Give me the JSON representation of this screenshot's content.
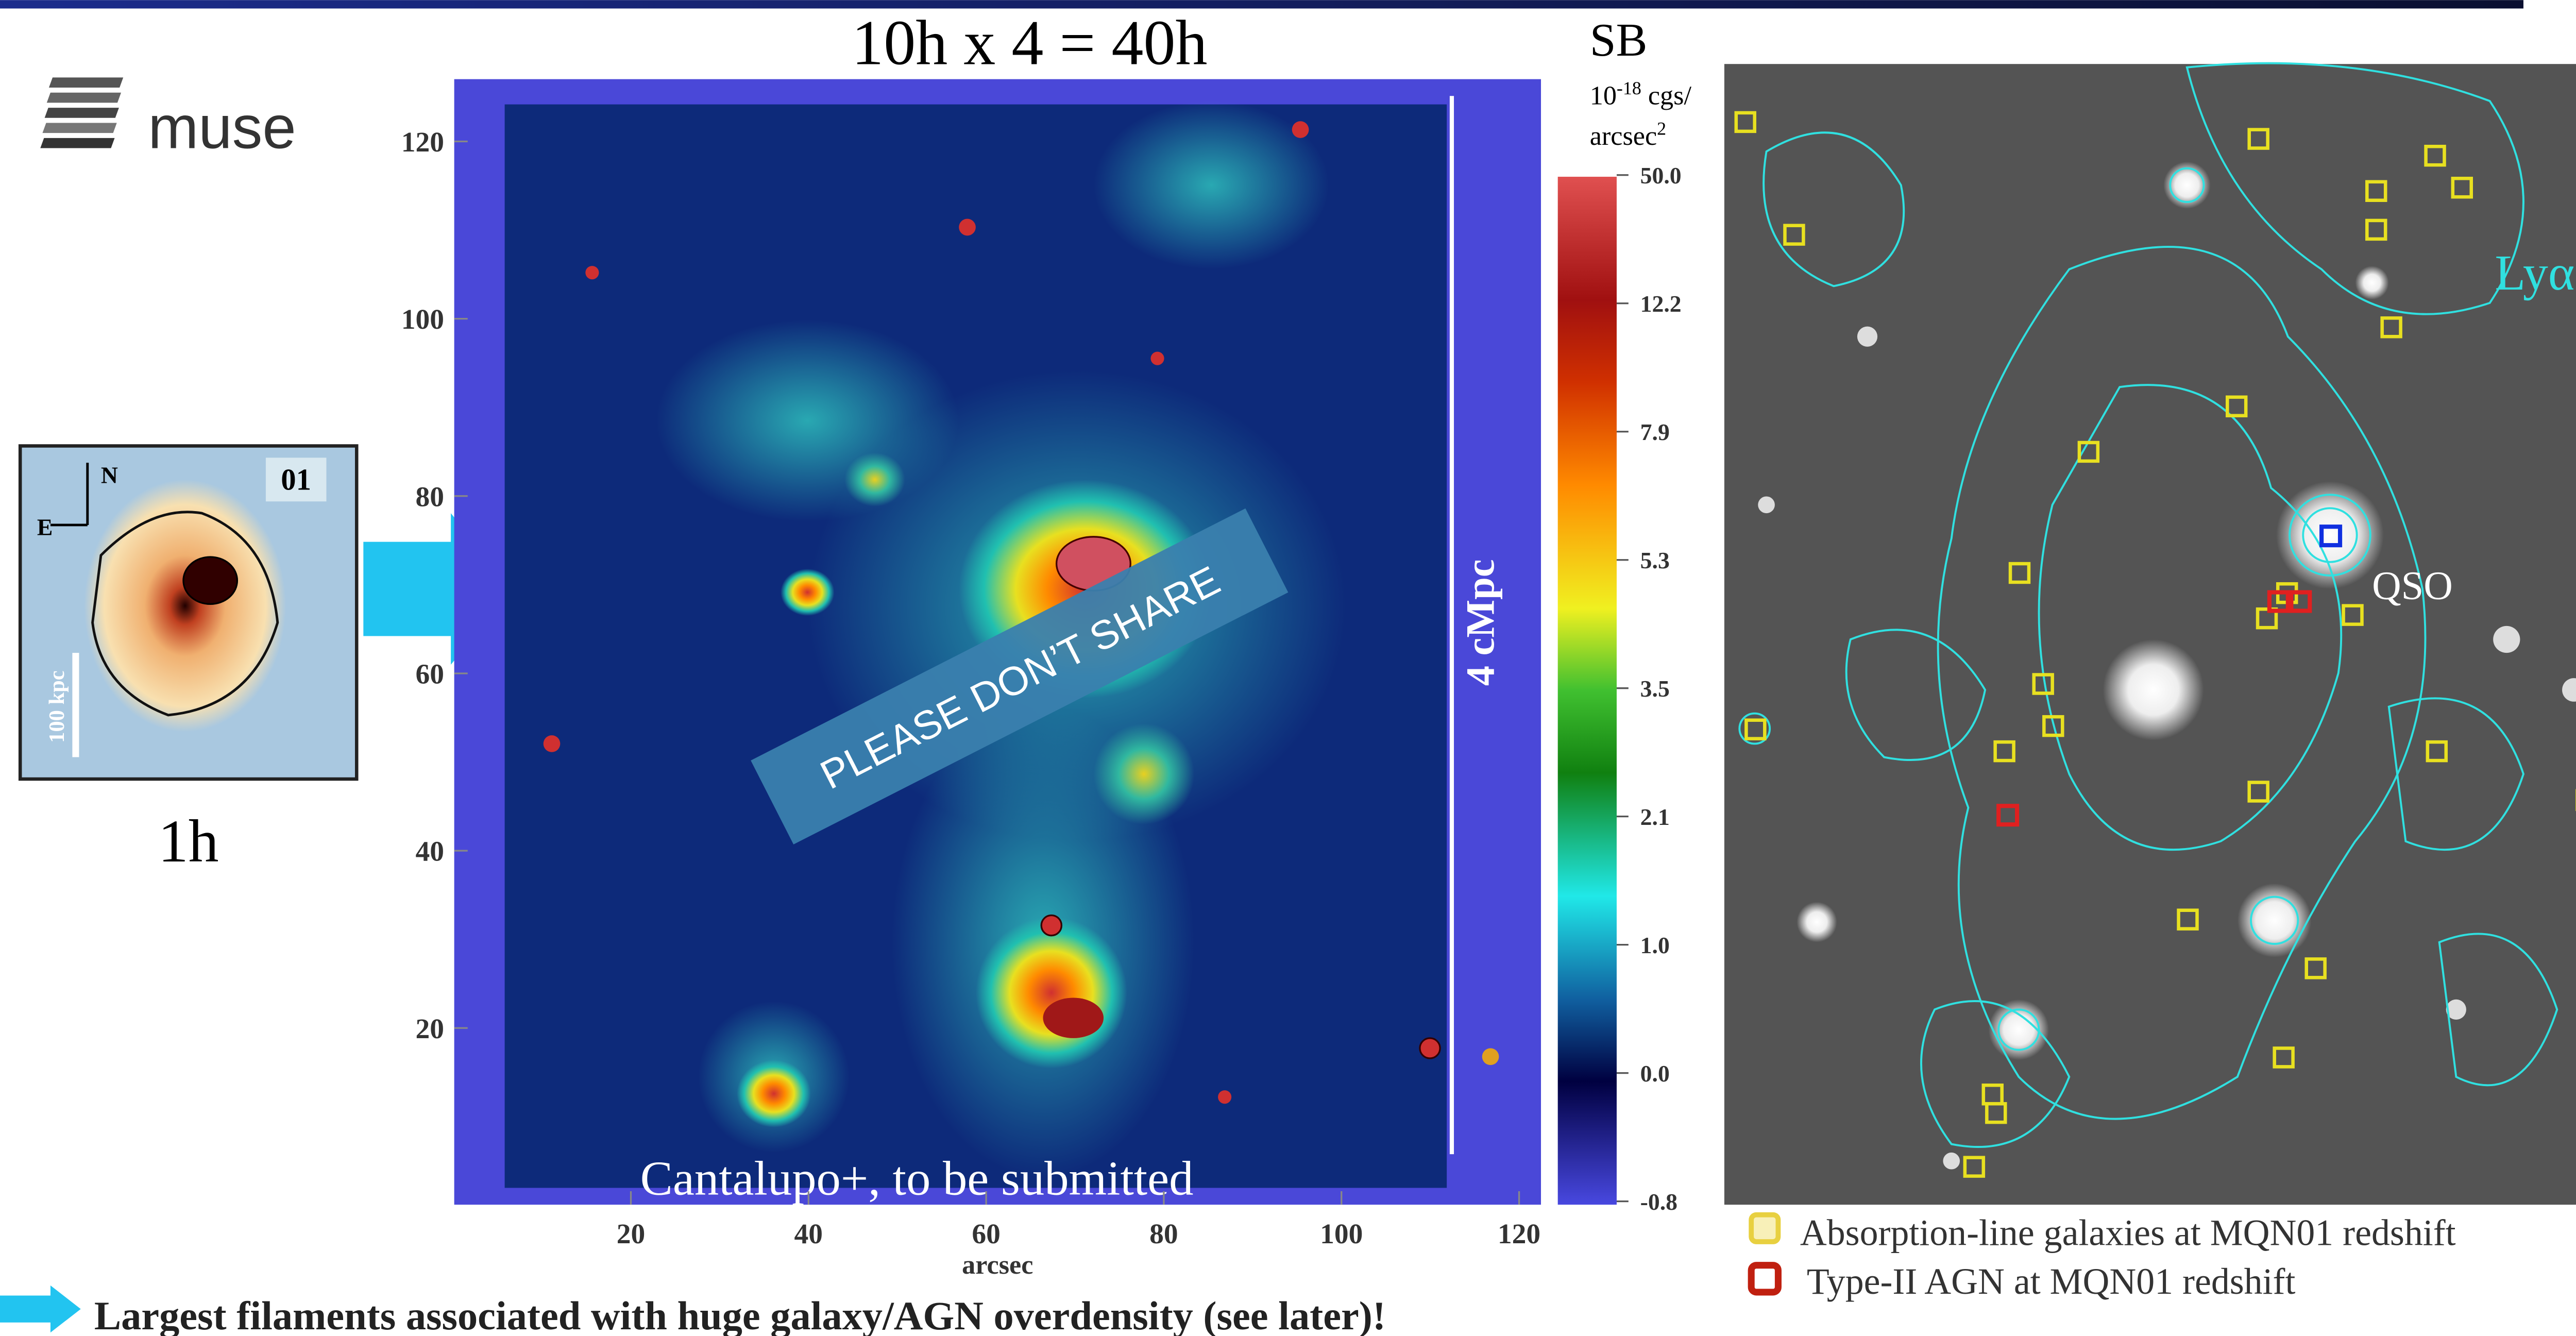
{
  "header": {
    "title": "10h x 4 = 40h"
  },
  "logo": {
    "text": "muse"
  },
  "inset": {
    "label": "01",
    "north": "N",
    "east": "E",
    "scale": "100 kpc",
    "caption": "1h"
  },
  "map": {
    "yticks": [
      "120",
      "100",
      "80",
      "60",
      "40",
      "20"
    ],
    "xticks": [
      "20",
      "40",
      "60",
      "80",
      "100",
      "120"
    ],
    "xlabel": "arcsec",
    "scale_label": "4 cMpc",
    "watermark": "PLEASE DON’T SHARE",
    "credit": "Cantalupo+, to be submitted"
  },
  "colorbar": {
    "title": "SB",
    "unit": {
      "base": "10",
      "exponent": "-18",
      "text": " cgs/",
      "area": "arcsec",
      "area_exponent": "2"
    },
    "ticks": [
      "50.0",
      "12.2",
      "7.9",
      "5.3",
      "3.5",
      "2.1",
      "1.0",
      "0.0",
      "-0.8"
    ]
  },
  "image": {
    "line_label": "Lyα",
    "source_label": "QSO"
  },
  "legend": [
    {
      "label": "Absorption-line galaxies at MQN01 redshift"
    },
    {
      "label": "Type-II AGN at MQN01 redshift"
    }
  ],
  "footer": {
    "text": "Largest filaments associated with huge galaxy/AGN overdensity (see later)!"
  }
}
